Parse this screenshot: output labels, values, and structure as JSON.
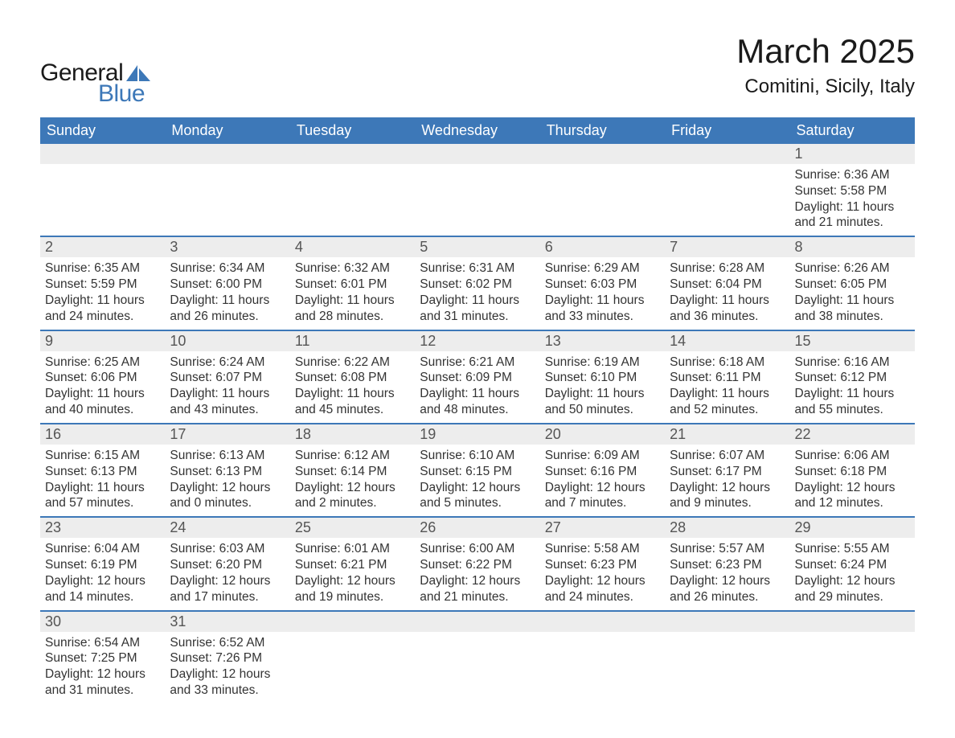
{
  "logo": {
    "text1": "General",
    "text2": "Blue",
    "sail_color": "#3d78b8",
    "text_color_dark": "#1a1a1a"
  },
  "title": "March 2025",
  "location": "Comitini, Sicily, Italy",
  "colors": {
    "header_bg": "#3d78b8",
    "header_fg": "#ffffff",
    "daynum_bg": "#ededed",
    "daynum_fg": "#555555",
    "body_text": "#333333",
    "row_border": "#3d78b8",
    "page_bg": "#ffffff"
  },
  "font_sizes": {
    "title_pt": 32,
    "location_pt": 18,
    "dow_pt": 14,
    "daynum_pt": 14,
    "body_pt": 12
  },
  "dow": [
    "Sunday",
    "Monday",
    "Tuesday",
    "Wednesday",
    "Thursday",
    "Friday",
    "Saturday"
  ],
  "weeks": [
    [
      null,
      null,
      null,
      null,
      null,
      null,
      {
        "n": "1",
        "sr": "Sunrise: 6:36 AM",
        "ss": "Sunset: 5:58 PM",
        "d1": "Daylight: 11 hours",
        "d2": "and 21 minutes."
      }
    ],
    [
      {
        "n": "2",
        "sr": "Sunrise: 6:35 AM",
        "ss": "Sunset: 5:59 PM",
        "d1": "Daylight: 11 hours",
        "d2": "and 24 minutes."
      },
      {
        "n": "3",
        "sr": "Sunrise: 6:34 AM",
        "ss": "Sunset: 6:00 PM",
        "d1": "Daylight: 11 hours",
        "d2": "and 26 minutes."
      },
      {
        "n": "4",
        "sr": "Sunrise: 6:32 AM",
        "ss": "Sunset: 6:01 PM",
        "d1": "Daylight: 11 hours",
        "d2": "and 28 minutes."
      },
      {
        "n": "5",
        "sr": "Sunrise: 6:31 AM",
        "ss": "Sunset: 6:02 PM",
        "d1": "Daylight: 11 hours",
        "d2": "and 31 minutes."
      },
      {
        "n": "6",
        "sr": "Sunrise: 6:29 AM",
        "ss": "Sunset: 6:03 PM",
        "d1": "Daylight: 11 hours",
        "d2": "and 33 minutes."
      },
      {
        "n": "7",
        "sr": "Sunrise: 6:28 AM",
        "ss": "Sunset: 6:04 PM",
        "d1": "Daylight: 11 hours",
        "d2": "and 36 minutes."
      },
      {
        "n": "8",
        "sr": "Sunrise: 6:26 AM",
        "ss": "Sunset: 6:05 PM",
        "d1": "Daylight: 11 hours",
        "d2": "and 38 minutes."
      }
    ],
    [
      {
        "n": "9",
        "sr": "Sunrise: 6:25 AM",
        "ss": "Sunset: 6:06 PM",
        "d1": "Daylight: 11 hours",
        "d2": "and 40 minutes."
      },
      {
        "n": "10",
        "sr": "Sunrise: 6:24 AM",
        "ss": "Sunset: 6:07 PM",
        "d1": "Daylight: 11 hours",
        "d2": "and 43 minutes."
      },
      {
        "n": "11",
        "sr": "Sunrise: 6:22 AM",
        "ss": "Sunset: 6:08 PM",
        "d1": "Daylight: 11 hours",
        "d2": "and 45 minutes."
      },
      {
        "n": "12",
        "sr": "Sunrise: 6:21 AM",
        "ss": "Sunset: 6:09 PM",
        "d1": "Daylight: 11 hours",
        "d2": "and 48 minutes."
      },
      {
        "n": "13",
        "sr": "Sunrise: 6:19 AM",
        "ss": "Sunset: 6:10 PM",
        "d1": "Daylight: 11 hours",
        "d2": "and 50 minutes."
      },
      {
        "n": "14",
        "sr": "Sunrise: 6:18 AM",
        "ss": "Sunset: 6:11 PM",
        "d1": "Daylight: 11 hours",
        "d2": "and 52 minutes."
      },
      {
        "n": "15",
        "sr": "Sunrise: 6:16 AM",
        "ss": "Sunset: 6:12 PM",
        "d1": "Daylight: 11 hours",
        "d2": "and 55 minutes."
      }
    ],
    [
      {
        "n": "16",
        "sr": "Sunrise: 6:15 AM",
        "ss": "Sunset: 6:13 PM",
        "d1": "Daylight: 11 hours",
        "d2": "and 57 minutes."
      },
      {
        "n": "17",
        "sr": "Sunrise: 6:13 AM",
        "ss": "Sunset: 6:13 PM",
        "d1": "Daylight: 12 hours",
        "d2": "and 0 minutes."
      },
      {
        "n": "18",
        "sr": "Sunrise: 6:12 AM",
        "ss": "Sunset: 6:14 PM",
        "d1": "Daylight: 12 hours",
        "d2": "and 2 minutes."
      },
      {
        "n": "19",
        "sr": "Sunrise: 6:10 AM",
        "ss": "Sunset: 6:15 PM",
        "d1": "Daylight: 12 hours",
        "d2": "and 5 minutes."
      },
      {
        "n": "20",
        "sr": "Sunrise: 6:09 AM",
        "ss": "Sunset: 6:16 PM",
        "d1": "Daylight: 12 hours",
        "d2": "and 7 minutes."
      },
      {
        "n": "21",
        "sr": "Sunrise: 6:07 AM",
        "ss": "Sunset: 6:17 PM",
        "d1": "Daylight: 12 hours",
        "d2": "and 9 minutes."
      },
      {
        "n": "22",
        "sr": "Sunrise: 6:06 AM",
        "ss": "Sunset: 6:18 PM",
        "d1": "Daylight: 12 hours",
        "d2": "and 12 minutes."
      }
    ],
    [
      {
        "n": "23",
        "sr": "Sunrise: 6:04 AM",
        "ss": "Sunset: 6:19 PM",
        "d1": "Daylight: 12 hours",
        "d2": "and 14 minutes."
      },
      {
        "n": "24",
        "sr": "Sunrise: 6:03 AM",
        "ss": "Sunset: 6:20 PM",
        "d1": "Daylight: 12 hours",
        "d2": "and 17 minutes."
      },
      {
        "n": "25",
        "sr": "Sunrise: 6:01 AM",
        "ss": "Sunset: 6:21 PM",
        "d1": "Daylight: 12 hours",
        "d2": "and 19 minutes."
      },
      {
        "n": "26",
        "sr": "Sunrise: 6:00 AM",
        "ss": "Sunset: 6:22 PM",
        "d1": "Daylight: 12 hours",
        "d2": "and 21 minutes."
      },
      {
        "n": "27",
        "sr": "Sunrise: 5:58 AM",
        "ss": "Sunset: 6:23 PM",
        "d1": "Daylight: 12 hours",
        "d2": "and 24 minutes."
      },
      {
        "n": "28",
        "sr": "Sunrise: 5:57 AM",
        "ss": "Sunset: 6:23 PM",
        "d1": "Daylight: 12 hours",
        "d2": "and 26 minutes."
      },
      {
        "n": "29",
        "sr": "Sunrise: 5:55 AM",
        "ss": "Sunset: 6:24 PM",
        "d1": "Daylight: 12 hours",
        "d2": "and 29 minutes."
      }
    ],
    [
      {
        "n": "30",
        "sr": "Sunrise: 6:54 AM",
        "ss": "Sunset: 7:25 PM",
        "d1": "Daylight: 12 hours",
        "d2": "and 31 minutes."
      },
      {
        "n": "31",
        "sr": "Sunrise: 6:52 AM",
        "ss": "Sunset: 7:26 PM",
        "d1": "Daylight: 12 hours",
        "d2": "and 33 minutes."
      },
      null,
      null,
      null,
      null,
      null
    ]
  ]
}
